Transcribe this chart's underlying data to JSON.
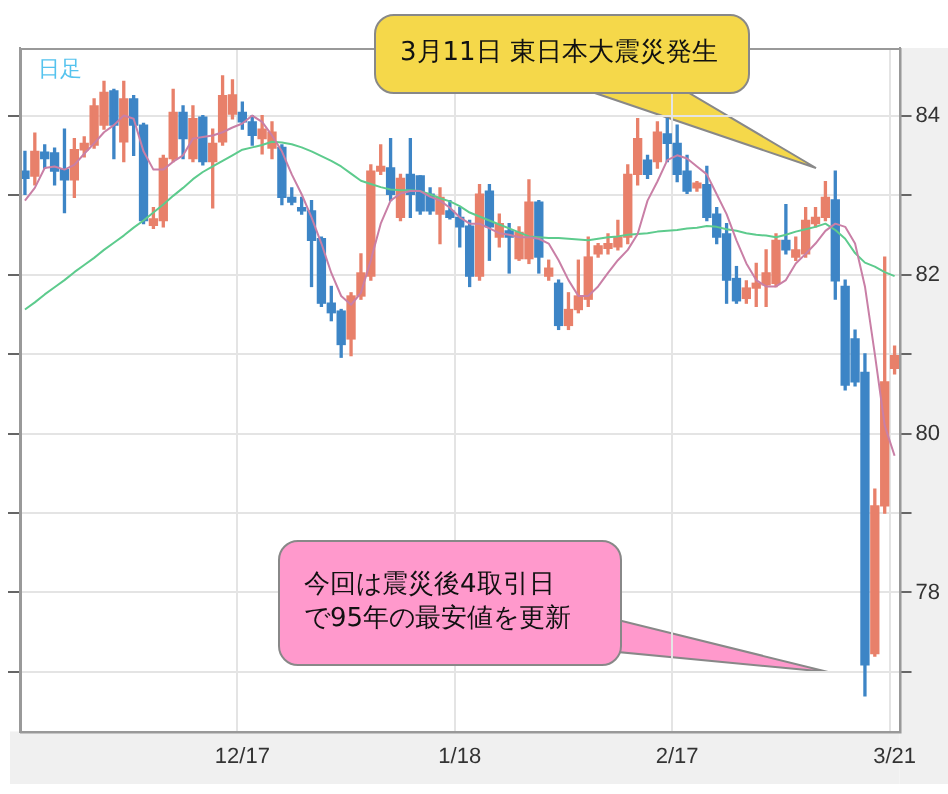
{
  "chart_data": {
    "type": "candlestick",
    "title": "日足",
    "categories": [
      null,
      null,
      null,
      null,
      null,
      null,
      null,
      null,
      null,
      null,
      null,
      null,
      null,
      null,
      null,
      null,
      null,
      null,
      null,
      null,
      null,
      null,
      "12/17",
      null,
      null,
      null,
      null,
      null,
      null,
      null,
      null,
      null,
      null,
      null,
      null,
      null,
      null,
      null,
      null,
      null,
      null,
      null,
      null,
      null,
      "1/18",
      null,
      null,
      null,
      null,
      null,
      null,
      null,
      null,
      null,
      null,
      null,
      null,
      null,
      null,
      null,
      null,
      null,
      null,
      null,
      null,
      null,
      "2/17",
      null,
      null,
      null,
      null,
      null,
      null,
      null,
      null,
      null,
      null,
      null,
      null,
      null,
      null,
      null,
      null,
      null,
      null,
      null,
      null,
      null,
      "3/21"
    ],
    "ohlc": [
      [
        83.3,
        83.55,
        83.01,
        83.21
      ],
      [
        83.24,
        83.78,
        83.13,
        83.55
      ],
      [
        83.54,
        83.63,
        83.34,
        83.46
      ],
      [
        83.53,
        83.59,
        83.13,
        83.3
      ],
      [
        83.32,
        83.83,
        82.78,
        83.19
      ],
      [
        83.19,
        83.71,
        82.97,
        83.57
      ],
      [
        83.57,
        83.73,
        83.48,
        83.65
      ],
      [
        83.63,
        84.21,
        83.59,
        84.12
      ],
      [
        83.88,
        84.43,
        83.83,
        84.29
      ],
      [
        84.31,
        84.33,
        83.46,
        83.88
      ],
      [
        83.67,
        84.43,
        83.42,
        84.21
      ],
      [
        84.21,
        84.25,
        83.5,
        83.88
      ],
      [
        83.88,
        83.9,
        82.64,
        82.68
      ],
      [
        82.62,
        82.84,
        82.58,
        82.7
      ],
      [
        82.68,
        83.5,
        82.6,
        83.46
      ],
      [
        83.46,
        84.33,
        83.42,
        84.04
      ],
      [
        84.04,
        84.12,
        83.46,
        83.71
      ],
      [
        83.46,
        84.12,
        83.42,
        83.96
      ],
      [
        83.98,
        84.0,
        83.38,
        83.42
      ],
      [
        83.42,
        83.83,
        82.84,
        83.65
      ],
      [
        83.67,
        84.5,
        83.63,
        84.25
      ],
      [
        84.02,
        84.45,
        83.96,
        84.26
      ],
      [
        84.04,
        84.17,
        83.83,
        83.92
      ],
      [
        83.92,
        84.0,
        83.63,
        83.75
      ],
      [
        83.71,
        84.0,
        83.52,
        83.83
      ],
      [
        83.59,
        83.92,
        83.46,
        83.79
      ],
      [
        83.6,
        83.63,
        82.88,
        82.97
      ],
      [
        82.97,
        83.09,
        82.88,
        82.91
      ],
      [
        82.84,
        82.97,
        82.76,
        82.8
      ],
      [
        82.8,
        82.93,
        81.85,
        82.43
      ],
      [
        82.45,
        82.47,
        81.6,
        81.64
      ],
      [
        81.64,
        81.85,
        81.42,
        81.52
      ],
      [
        81.54,
        81.56,
        80.96,
        81.12
      ],
      [
        81.19,
        81.77,
        80.98,
        81.73
      ],
      [
        81.73,
        82.26,
        81.69,
        82.02
      ],
      [
        81.98,
        83.38,
        81.93,
        83.3
      ],
      [
        83.3,
        83.63,
        83.26,
        83.36
      ],
      [
        83.34,
        83.71,
        82.93,
        83.01
      ],
      [
        82.72,
        83.26,
        82.68,
        83.21
      ],
      [
        83.26,
        83.71,
        82.72,
        83.01
      ],
      [
        83.24,
        83.24,
        82.76,
        82.8
      ],
      [
        83.01,
        83.09,
        82.76,
        82.8
      ],
      [
        82.76,
        83.09,
        82.39,
        82.97
      ],
      [
        82.8,
        82.93,
        82.7,
        82.72
      ],
      [
        82.72,
        82.84,
        82.35,
        82.6
      ],
      [
        82.61,
        82.68,
        81.85,
        81.98
      ],
      [
        81.98,
        83.13,
        81.93,
        83.01
      ],
      [
        83.05,
        83.13,
        82.18,
        82.6
      ],
      [
        82.47,
        82.76,
        82.35,
        82.64
      ],
      [
        82.55,
        82.64,
        82.02,
        82.47
      ],
      [
        82.2,
        82.6,
        82.18,
        82.53
      ],
      [
        82.2,
        83.19,
        82.14,
        82.91
      ],
      [
        82.91,
        82.93,
        82.02,
        82.22
      ],
      [
        81.98,
        82.18,
        81.93,
        82.08
      ],
      [
        81.89,
        81.93,
        81.31,
        81.36
      ],
      [
        81.36,
        81.77,
        81.31,
        81.56
      ],
      [
        81.56,
        82.18,
        81.52,
        81.73
      ],
      [
        81.69,
        82.47,
        81.6,
        82.22
      ],
      [
        82.26,
        82.39,
        82.22,
        82.36
      ],
      [
        82.33,
        82.51,
        82.26,
        82.39
      ],
      [
        82.35,
        82.68,
        82.31,
        82.47
      ],
      [
        82.47,
        83.38,
        82.39,
        83.26
      ],
      [
        83.26,
        83.96,
        83.13,
        83.71
      ],
      [
        83.44,
        83.5,
        83.21,
        83.26
      ],
      [
        83.42,
        83.92,
        83.34,
        83.79
      ],
      [
        83.77,
        83.96,
        83.42,
        83.65
      ],
      [
        83.65,
        83.88,
        83.17,
        83.26
      ],
      [
        83.3,
        83.5,
        83.02,
        83.05
      ],
      [
        83.09,
        83.17,
        83.05,
        83.15
      ],
      [
        83.13,
        83.36,
        82.68,
        82.72
      ],
      [
        82.76,
        82.84,
        82.39,
        82.47
      ],
      [
        82.51,
        82.64,
        81.64,
        81.93
      ],
      [
        81.95,
        82.1,
        81.64,
        81.67
      ],
      [
        81.7,
        81.92,
        81.64,
        81.83
      ],
      [
        81.83,
        82.14,
        81.6,
        81.89
      ],
      [
        81.87,
        82.31,
        81.6,
        82.02
      ],
      [
        81.89,
        82.51,
        81.85,
        82.43
      ],
      [
        82.43,
        82.88,
        82.26,
        82.31
      ],
      [
        82.22,
        82.47,
        82.18,
        82.31
      ],
      [
        82.26,
        82.84,
        82.22,
        82.68
      ],
      [
        82.64,
        82.84,
        82.6,
        82.72
      ],
      [
        82.72,
        83.17,
        82.68,
        82.97
      ],
      [
        82.94,
        83.3,
        81.69,
        81.92
      ],
      [
        81.85,
        81.93,
        80.55,
        80.61
      ],
      [
        81.19,
        81.3,
        80.6,
        80.65
      ],
      [
        80.77,
        81.0,
        76.7,
        77.09
      ],
      [
        77.23,
        79.3,
        77.2,
        79.09
      ],
      [
        79.09,
        82.22,
        79.0,
        80.65
      ],
      [
        80.82,
        81.1,
        80.75,
        80.98
      ]
    ],
    "colors": [
      "#3d85c6",
      "#e8806a",
      "#3d85c6",
      "#3d85c6",
      "#3d85c6",
      "#e8806a",
      "#e8806a",
      "#e8806a",
      "#e8806a",
      "#3d85c6",
      "#e8806a",
      "#3d85c6",
      "#3d85c6",
      "#e8806a",
      "#e8806a",
      "#e8806a",
      "#3d85c6",
      "#e8806a",
      "#3d85c6",
      "#e8806a",
      "#e8806a",
      "#e8806a",
      "#3d85c6",
      "#3d85c6",
      "#e8806a",
      "#e8806a",
      "#3d85c6",
      "#3d85c6",
      "#3d85c6",
      "#3d85c6",
      "#3d85c6",
      "#3d85c6",
      "#3d85c6",
      "#e8806a",
      "#e8806a",
      "#e8806a",
      "#e8806a",
      "#3d85c6",
      "#e8806a",
      "#3d85c6",
      "#3d85c6",
      "#3d85c6",
      "#e8806a",
      "#3d85c6",
      "#3d85c6",
      "#3d85c6",
      "#e8806a",
      "#3d85c6",
      "#e8806a",
      "#3d85c6",
      "#e8806a",
      "#e8806a",
      "#3d85c6",
      "#e8806a",
      "#3d85c6",
      "#e8806a",
      "#e8806a",
      "#e8806a",
      "#e8806a",
      "#e8806a",
      "#e8806a",
      "#e8806a",
      "#e8806a",
      "#3d85c6",
      "#e8806a",
      "#3d85c6",
      "#3d85c6",
      "#3d85c6",
      "#e8806a",
      "#3d85c6",
      "#3d85c6",
      "#3d85c6",
      "#3d85c6",
      "#e8806a",
      "#e8806a",
      "#e8806a",
      "#e8806a",
      "#3d85c6",
      "#e8806a",
      "#e8806a",
      "#e8806a",
      "#e8806a",
      "#3d85c6",
      "#3d85c6",
      "#3d85c6",
      "#3d85c6",
      "#e8806a",
      "#e8806a",
      "#e8806a"
    ],
    "series": [
      {
        "type": "line",
        "color": "#c97fa6",
        "values": [
          82.93,
          83.09,
          83.34,
          83.36,
          83.32,
          83.38,
          83.52,
          83.65,
          83.79,
          83.88,
          84.0,
          83.96,
          83.55,
          83.32,
          83.32,
          83.42,
          83.5,
          83.71,
          83.73,
          83.75,
          83.79,
          83.85,
          83.9,
          84.0,
          83.92,
          83.75,
          83.55,
          83.26,
          83.01,
          82.72,
          82.39,
          82.02,
          81.73,
          81.62,
          81.77,
          82.18,
          82.64,
          82.93,
          83.02,
          83.05,
          83.05,
          82.98,
          82.93,
          82.84,
          82.72,
          82.64,
          82.64,
          82.58,
          82.52,
          82.5,
          82.47,
          82.47,
          82.45,
          82.39,
          82.18,
          81.93,
          81.73,
          81.73,
          81.85,
          82.02,
          82.18,
          82.31,
          82.51,
          82.93,
          83.17,
          83.44,
          83.5,
          83.46,
          83.36,
          83.26,
          83.01,
          82.76,
          82.43,
          82.14,
          81.93,
          81.85,
          81.85,
          81.93,
          82.14,
          82.26,
          82.39,
          82.55,
          82.64,
          82.6,
          82.39,
          81.85,
          81.0,
          80.1,
          79.72
        ]
      },
      {
        "type": "line",
        "color": "#5dcb8d",
        "values": [
          81.56,
          81.65,
          81.75,
          81.84,
          81.93,
          82.03,
          82.12,
          82.21,
          82.31,
          82.4,
          82.49,
          82.59,
          82.68,
          82.78,
          82.88,
          82.99,
          83.09,
          83.2,
          83.29,
          83.36,
          83.43,
          83.5,
          83.57,
          83.6,
          83.63,
          83.67,
          83.66,
          83.64,
          83.6,
          83.55,
          83.49,
          83.43,
          83.36,
          83.27,
          83.18,
          83.14,
          83.1,
          83.07,
          83.06,
          83.06,
          83.05,
          83.01,
          82.96,
          82.92,
          82.86,
          82.78,
          82.73,
          82.68,
          82.63,
          82.58,
          82.53,
          82.48,
          82.47,
          82.46,
          82.46,
          82.45,
          82.44,
          82.43,
          82.45,
          82.47,
          82.48,
          82.5,
          82.51,
          82.52,
          82.54,
          82.55,
          82.56,
          82.58,
          82.59,
          82.61,
          82.6,
          82.57,
          82.55,
          82.52,
          82.5,
          82.49,
          82.47,
          82.5,
          82.54,
          82.57,
          82.6,
          82.64,
          82.56,
          82.45,
          82.27,
          82.15,
          82.1,
          82.03,
          81.98
        ]
      }
    ],
    "ylim": [
      76.25,
      84.85
    ],
    "yticks": [
      {
        "value": 77,
        "label": null
      },
      78,
      {
        "value": 79,
        "label": null
      },
      80,
      {
        "value": 81,
        "label": null
      },
      82,
      {
        "value": 83,
        "label": null
      },
      84
    ],
    "grid": true,
    "annotations": [
      "3月11日 東日本大震災発生",
      "今回は震災後4取引日で95年の最安値を更新"
    ]
  }
}
